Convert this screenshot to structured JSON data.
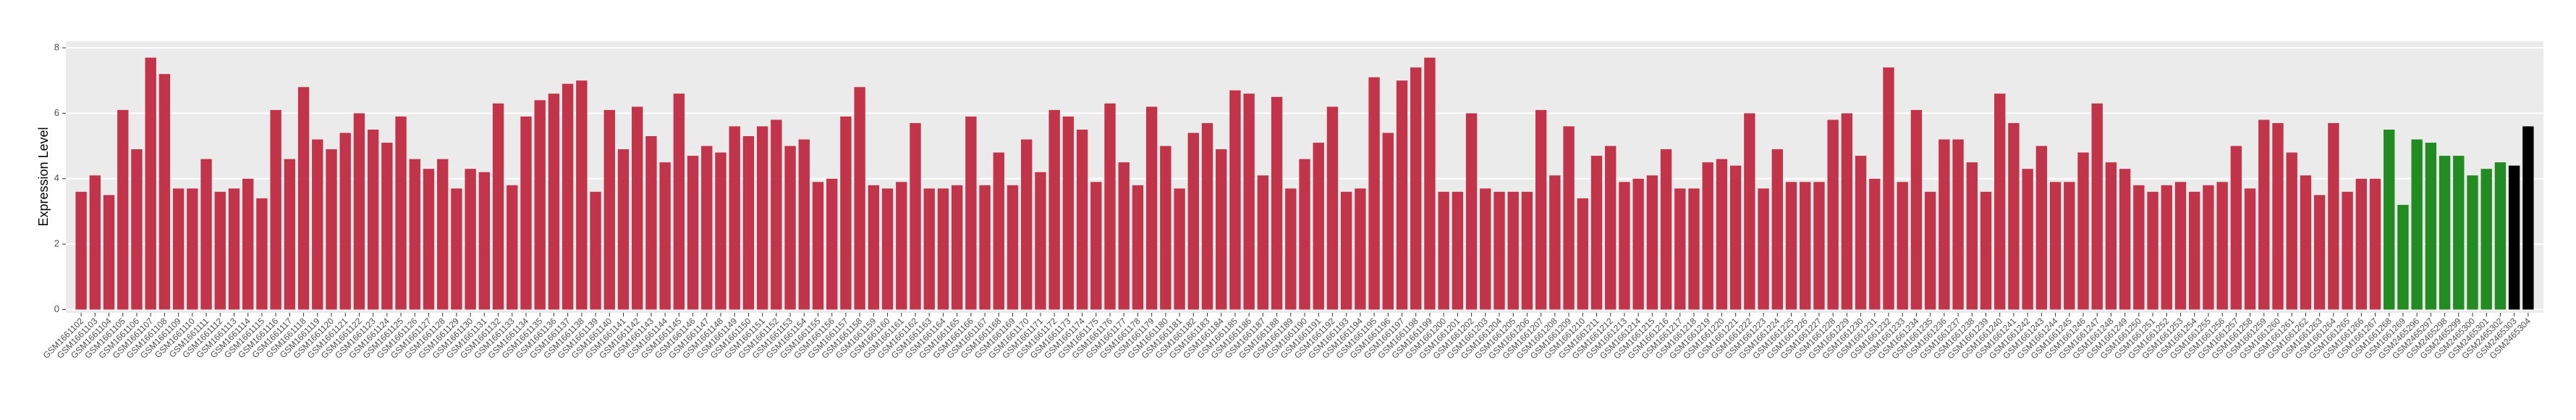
{
  "chart_data": {
    "type": "bar",
    "y_label": "Expression Level",
    "categories": [
      "GSM1661102",
      "GSM1661103",
      "GSM1661104",
      "GSM1661105",
      "GSM1661106",
      "GSM1661107",
      "GSM1661108",
      "GSM1661109",
      "GSM1661110",
      "GSM1661111",
      "GSM1661112",
      "GSM1661113",
      "GSM1661114",
      "GSM1661115",
      "GSM1661116",
      "GSM1661117",
      "GSM1661118",
      "GSM1661119",
      "GSM1661120",
      "GSM1661121",
      "GSM1661122",
      "GSM1661123",
      "GSM1661124",
      "GSM1661125",
      "GSM1661126",
      "GSM1661127",
      "GSM1661128",
      "GSM1661129",
      "GSM1661130",
      "GSM1661131",
      "GSM1661132",
      "GSM1661133",
      "GSM1661134",
      "GSM1661135",
      "GSM1661136",
      "GSM1661137",
      "GSM1661138",
      "GSM1661139",
      "GSM1661140",
      "GSM1661141",
      "GSM1661142",
      "GSM1661143",
      "GSM1661144",
      "GSM1661145",
      "GSM1661146",
      "GSM1661147",
      "GSM1661148",
      "GSM1661149",
      "GSM1661150",
      "GSM1661151",
      "GSM1661152",
      "GSM1661153",
      "GSM1661154",
      "GSM1661155",
      "GSM1661156",
      "GSM1661157",
      "GSM1661158",
      "GSM1661159",
      "GSM1661160",
      "GSM1661161",
      "GSM1661162",
      "GSM1661163",
      "GSM1661164",
      "GSM1661165",
      "GSM1661166",
      "GSM1661167",
      "GSM1661168",
      "GSM1661169",
      "GSM1661170",
      "GSM1661171",
      "GSM1661172",
      "GSM1661173",
      "GSM1661174",
      "GSM1661175",
      "GSM1661176",
      "GSM1661177",
      "GSM1661178",
      "GSM1661179",
      "GSM1661180",
      "GSM1661181",
      "GSM1661182",
      "GSM1661183",
      "GSM1661184",
      "GSM1661185",
      "GSM1661186",
      "GSM1661187",
      "GSM1661188",
      "GSM1661189",
      "GSM1661190",
      "GSM1661191",
      "GSM1661192",
      "GSM1661193",
      "GSM1661194",
      "GSM1661195",
      "GSM1661196",
      "GSM1661197",
      "GSM1661198",
      "GSM1661199",
      "GSM1661200",
      "GSM1661201",
      "GSM1661202",
      "GSM1661203",
      "GSM1661204",
      "GSM1661205",
      "GSM1661206",
      "GSM1661207",
      "GSM1661208",
      "GSM1661209",
      "GSM1661210",
      "GSM1661211",
      "GSM1661212",
      "GSM1661213",
      "GSM1661214",
      "GSM1661215",
      "GSM1661216",
      "GSM1661217",
      "GSM1661218",
      "GSM1661219",
      "GSM1661220",
      "GSM1661221",
      "GSM1661222",
      "GSM1661223",
      "GSM1661224",
      "GSM1661225",
      "GSM1661226",
      "GSM1661227",
      "GSM1661228",
      "GSM1661229",
      "GSM1661230",
      "GSM1661231",
      "GSM1661232",
      "GSM1661233",
      "GSM1661234",
      "GSM1661235",
      "GSM1661236",
      "GSM1661237",
      "GSM1661238",
      "GSM1661239",
      "GSM1661240",
      "GSM1661241",
      "GSM1661242",
      "GSM1661243",
      "GSM1661244",
      "GSM1661245",
      "GSM1661246",
      "GSM1661247",
      "GSM1661248",
      "GSM1661249",
      "GSM1661250",
      "GSM1661251",
      "GSM1661252",
      "GSM1661253",
      "GSM1661254",
      "GSM1661255",
      "GSM1661256",
      "GSM1661257",
      "GSM1661258",
      "GSM1661259",
      "GSM1661260",
      "GSM1661261",
      "GSM1661262",
      "GSM1661263",
      "GSM1661264",
      "GSM1661265",
      "GSM1661266",
      "GSM1661267",
      "GSM1661268",
      "GSM1661269",
      "GSM2465296",
      "GSM2465297",
      "GSM2465298",
      "GSM2465299",
      "GSM2465300",
      "GSM2465301",
      "GSM2465302",
      "GSM2465303",
      "GSM2465304"
    ],
    "values": [
      3.6,
      4.1,
      3.5,
      6.1,
      4.9,
      7.7,
      7.2,
      3.7,
      3.7,
      4.6,
      3.6,
      3.7,
      4.0,
      3.4,
      6.1,
      4.6,
      6.8,
      5.2,
      4.9,
      5.4,
      6.0,
      5.5,
      5.1,
      5.9,
      4.6,
      4.3,
      4.6,
      3.7,
      4.3,
      4.2,
      6.3,
      3.8,
      5.9,
      6.4,
      6.6,
      6.9,
      7.0,
      3.6,
      6.1,
      4.9,
      6.2,
      5.3,
      4.5,
      6.6,
      4.7,
      5.0,
      4.8,
      5.6,
      5.3,
      5.6,
      5.8,
      5.0,
      5.2,
      3.9,
      4.0,
      5.9,
      6.8,
      3.8,
      3.7,
      3.9,
      5.7,
      3.7,
      3.7,
      3.8,
      5.9,
      3.8,
      4.8,
      3.8,
      5.2,
      4.2,
      6.1,
      5.9,
      5.5,
      3.9,
      6.3,
      4.5,
      3.8,
      6.2,
      5.0,
      3.7,
      5.4,
      5.7,
      4.9,
      6.7,
      6.6,
      4.1,
      6.5,
      3.7,
      4.6,
      5.1,
      6.2,
      3.6,
      3.7,
      7.1,
      5.4,
      7.0,
      7.4,
      7.7,
      3.6,
      3.6,
      6.0,
      3.7,
      3.6,
      3.6,
      3.6,
      6.1,
      4.1,
      5.6,
      3.4,
      4.7,
      5.0,
      3.9,
      4.0,
      4.1,
      4.9,
      3.7,
      3.7,
      4.5,
      4.6,
      4.4,
      6.0,
      3.7,
      4.9,
      3.9,
      3.9,
      3.9,
      5.8,
      6.0,
      4.7,
      4.0,
      7.4,
      3.9,
      6.1,
      3.6,
      5.2,
      5.2,
      4.5,
      3.6,
      6.6,
      5.7,
      4.3,
      5.0,
      3.9,
      3.9,
      4.8,
      6.3,
      4.5,
      4.3,
      3.8,
      3.6,
      3.8,
      3.9,
      3.6,
      3.8,
      3.9,
      5.0,
      3.7,
      5.8,
      5.7,
      4.8,
      4.1,
      3.5,
      5.7,
      3.6,
      4.0,
      4.0,
      5.5,
      3.2,
      5.2,
      5.1,
      4.7,
      4.7,
      4.1,
      4.3,
      4.5,
      4.4,
      5.6
    ],
    "colors": [
      "#c1344a",
      "#c1344a",
      "#c1344a",
      "#c1344a",
      "#c1344a",
      "#c1344a",
      "#c1344a",
      "#c1344a",
      "#c1344a",
      "#c1344a",
      "#c1344a",
      "#c1344a",
      "#c1344a",
      "#c1344a",
      "#c1344a",
      "#c1344a",
      "#c1344a",
      "#c1344a",
      "#c1344a",
      "#c1344a",
      "#c1344a",
      "#c1344a",
      "#c1344a",
      "#c1344a",
      "#c1344a",
      "#c1344a",
      "#c1344a",
      "#c1344a",
      "#c1344a",
      "#c1344a",
      "#c1344a",
      "#c1344a",
      "#c1344a",
      "#c1344a",
      "#c1344a",
      "#c1344a",
      "#c1344a",
      "#c1344a",
      "#c1344a",
      "#c1344a",
      "#c1344a",
      "#c1344a",
      "#c1344a",
      "#c1344a",
      "#c1344a",
      "#c1344a",
      "#c1344a",
      "#c1344a",
      "#c1344a",
      "#c1344a",
      "#c1344a",
      "#c1344a",
      "#c1344a",
      "#c1344a",
      "#c1344a",
      "#c1344a",
      "#c1344a",
      "#c1344a",
      "#c1344a",
      "#c1344a",
      "#c1344a",
      "#c1344a",
      "#c1344a",
      "#c1344a",
      "#c1344a",
      "#c1344a",
      "#c1344a",
      "#c1344a",
      "#c1344a",
      "#c1344a",
      "#c1344a",
      "#c1344a",
      "#c1344a",
      "#c1344a",
      "#c1344a",
      "#c1344a",
      "#c1344a",
      "#c1344a",
      "#c1344a",
      "#c1344a",
      "#c1344a",
      "#c1344a",
      "#c1344a",
      "#c1344a",
      "#c1344a",
      "#c1344a",
      "#c1344a",
      "#c1344a",
      "#c1344a",
      "#c1344a",
      "#c1344a",
      "#c1344a",
      "#c1344a",
      "#c1344a",
      "#c1344a",
      "#c1344a",
      "#c1344a",
      "#c1344a",
      "#c1344a",
      "#c1344a",
      "#c1344a",
      "#c1344a",
      "#c1344a",
      "#c1344a",
      "#c1344a",
      "#c1344a",
      "#c1344a",
      "#c1344a",
      "#c1344a",
      "#c1344a",
      "#c1344a",
      "#c1344a",
      "#c1344a",
      "#c1344a",
      "#c1344a",
      "#c1344a",
      "#c1344a",
      "#c1344a",
      "#c1344a",
      "#c1344a",
      "#c1344a",
      "#c1344a",
      "#c1344a",
      "#c1344a",
      "#c1344a",
      "#c1344a",
      "#c1344a",
      "#c1344a",
      "#c1344a",
      "#c1344a",
      "#c1344a",
      "#c1344a",
      "#c1344a",
      "#c1344a",
      "#c1344a",
      "#c1344a",
      "#c1344a",
      "#c1344a",
      "#c1344a",
      "#c1344a",
      "#c1344a",
      "#c1344a",
      "#c1344a",
      "#c1344a",
      "#c1344a",
      "#c1344a",
      "#c1344a",
      "#c1344a",
      "#c1344a",
      "#c1344a",
      "#c1344a",
      "#c1344a",
      "#c1344a",
      "#c1344a",
      "#c1344a",
      "#c1344a",
      "#c1344a",
      "#c1344a",
      "#c1344a",
      "#c1344a",
      "#c1344a",
      "#c1344a",
      "#c1344a",
      "#c1344a",
      "#c1344a",
      "#c1344a",
      "#228b22",
      "#228b22",
      "#228b22",
      "#228b22",
      "#228b22",
      "#228b22",
      "#228b22",
      "#228b22",
      "#228b22"
    ],
    "ylim": [
      -0.1,
      8.2
    ],
    "yticks": [
      0,
      2,
      4,
      6,
      8
    ],
    "grid": true
  }
}
